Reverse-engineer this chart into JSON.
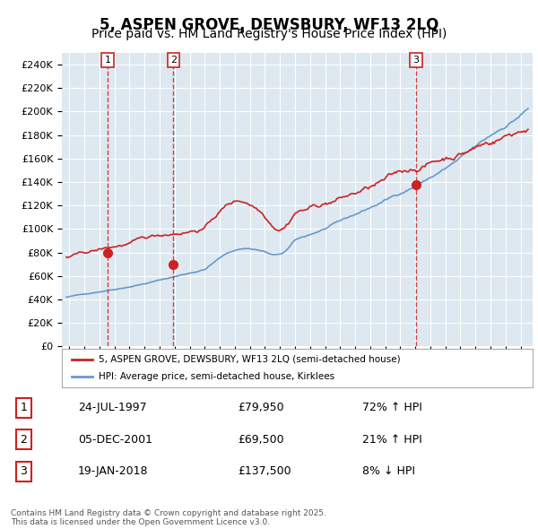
{
  "title": "5, ASPEN GROVE, DEWSBURY, WF13 2LQ",
  "subtitle": "Price paid vs. HM Land Registry's House Price Index (HPI)",
  "title_fontsize": 12,
  "subtitle_fontsize": 10,
  "ylim": [
    0,
    250000
  ],
  "yticks": [
    0,
    20000,
    40000,
    60000,
    80000,
    100000,
    120000,
    140000,
    160000,
    180000,
    200000,
    220000,
    240000
  ],
  "ytick_labels": [
    "£0",
    "£20K",
    "£40K",
    "£60K",
    "£80K",
    "£100K",
    "£120K",
    "£140K",
    "£160K",
    "£180K",
    "£200K",
    "£220K",
    "£240K"
  ],
  "hpi_color": "#6699cc",
  "price_color": "#cc2222",
  "dashed_line_color": "#cc2222",
  "bg_color": "#dde8f0",
  "grid_color": "#ffffff",
  "sales": [
    {
      "date_x": 1997.56,
      "price": 79950,
      "label": "1"
    },
    {
      "date_x": 2001.92,
      "price": 69500,
      "label": "2"
    },
    {
      "date_x": 2018.05,
      "price": 137500,
      "label": "3"
    }
  ],
  "legend_entries": [
    {
      "label": "5, ASPEN GROVE, DEWSBURY, WF13 2LQ (semi-detached house)",
      "color": "#cc2222"
    },
    {
      "label": "HPI: Average price, semi-detached house, Kirklees",
      "color": "#6699cc"
    }
  ],
  "table_rows": [
    {
      "num": "1",
      "date": "24-JUL-1997",
      "price": "£79,950",
      "change": "72% ↑ HPI"
    },
    {
      "num": "2",
      "date": "05-DEC-2001",
      "price": "£69,500",
      "change": "21% ↑ HPI"
    },
    {
      "num": "3",
      "date": "19-JAN-2018",
      "price": "£137,500",
      "change": "8% ↓ HPI"
    }
  ],
  "footnote": "Contains HM Land Registry data © Crown copyright and database right 2025.\nThis data is licensed under the Open Government Licence v3.0.",
  "xmin": 1994.5,
  "xmax": 2025.8
}
